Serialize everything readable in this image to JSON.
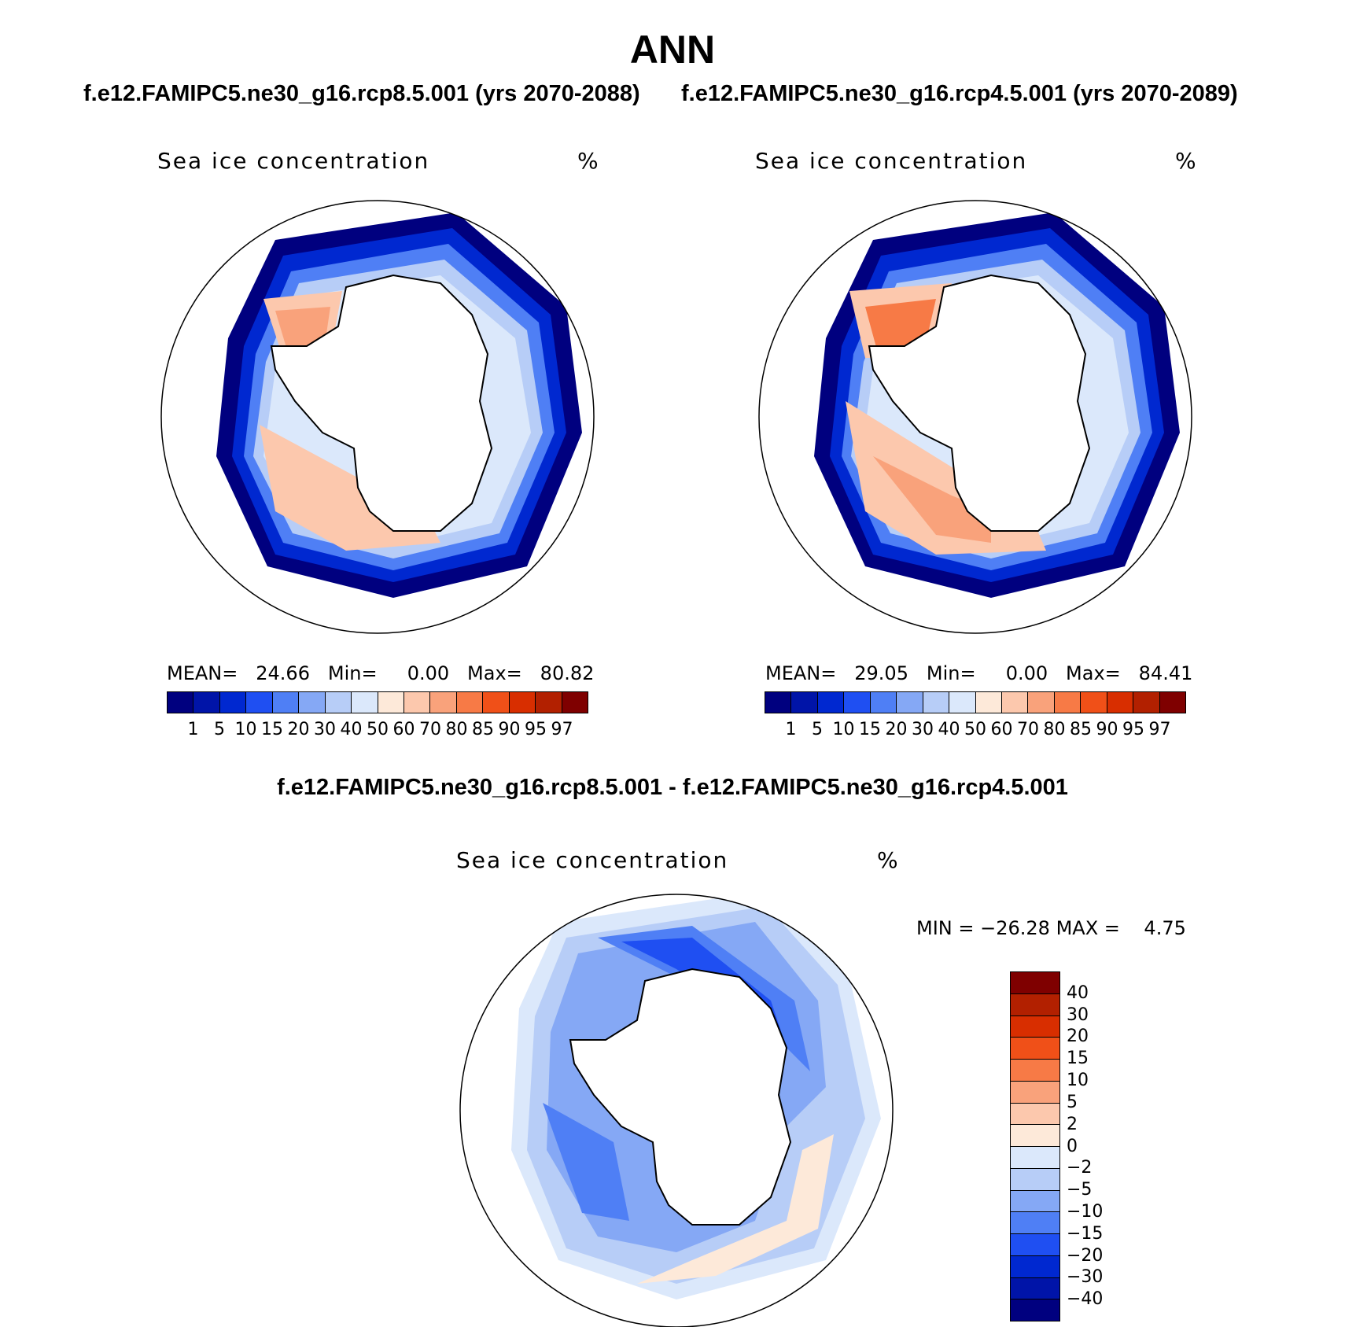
{
  "title": "ANN",
  "panels": [
    {
      "case": "f.e12.FAMIPC5.ne30_g16.rcp8.5.001 (yrs 2070-2088)",
      "variable": "Sea ice concentration",
      "units": "%",
      "stats": {
        "mean_label": "MEAN=",
        "mean": "24.66",
        "min_label": "Min=",
        "min": "0.00",
        "max_label": "Max=",
        "max": "80.82"
      }
    },
    {
      "case": "f.e12.FAMIPC5.ne30_g16.rcp4.5.001 (yrs 2070-2089)",
      "variable": "Sea ice concentration",
      "units": "%",
      "stats": {
        "mean_label": "MEAN=",
        "mean": "29.05",
        "min_label": "Min=",
        "min": "0.00",
        "max_label": "Max=",
        "max": "84.41"
      }
    }
  ],
  "difference": {
    "title": "f.e12.FAMIPC5.ne30_g16.rcp8.5.001 - f.e12.FAMIPC5.ne30_g16.rcp4.5.001",
    "variable": "Sea ice concentration",
    "units": "%",
    "stats": {
      "min_label": "MIN =",
      "min": "−26.28",
      "max_label": "MAX =",
      "max": "4.75"
    }
  },
  "colorbars": {
    "absolute": {
      "ticks": [
        "1",
        "5",
        "10",
        "15",
        "20",
        "30",
        "40",
        "50",
        "60",
        "70",
        "80",
        "85",
        "90",
        "95",
        "97"
      ],
      "colors": [
        "#00007f",
        "#0014a8",
        "#0028d0",
        "#1f4ff2",
        "#4f7ff5",
        "#85a8f5",
        "#b7cdf7",
        "#dbe8fb",
        "#fde9d9",
        "#fcc8ad",
        "#f9a27b",
        "#f77a46",
        "#f05018",
        "#d82e00",
        "#b22000",
        "#7f0000"
      ]
    },
    "difference": {
      "ticks": [
        "40",
        "30",
        "20",
        "15",
        "10",
        "5",
        "2",
        "0",
        "−2",
        "−5",
        "−10",
        "−15",
        "−20",
        "−30",
        "−40"
      ],
      "colors": [
        "#7f0000",
        "#b22000",
        "#d82e00",
        "#f05018",
        "#f77a46",
        "#f9a27b",
        "#fcc8ad",
        "#fde9d9",
        "#dbe8fb",
        "#b7cdf7",
        "#85a8f5",
        "#4f7ff5",
        "#1f4ff2",
        "#0028d0",
        "#0014a8",
        "#00007f"
      ]
    }
  },
  "maps": {
    "projection": "south-polar-stereographic",
    "region": "Antarctica / Southern Ocean"
  }
}
